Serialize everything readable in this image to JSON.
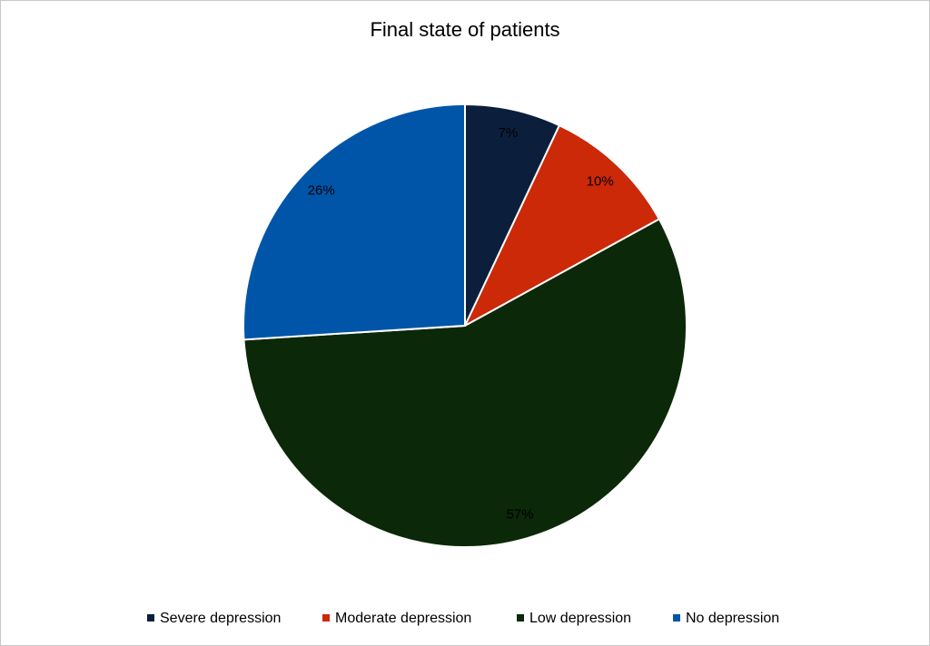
{
  "chart_data": {
    "type": "pie",
    "title": "Final state of patients",
    "categories": [
      "Severe depression",
      "Moderate depression",
      "Low depression",
      "No depression"
    ],
    "values": [
      7,
      10,
      57,
      26
    ],
    "value_labels": [
      "7%",
      "10%",
      "57%",
      "26%"
    ],
    "colors": [
      "#0b1f3d",
      "#cc2908",
      "#0b2808",
      "#0055a9"
    ],
    "legend": "bottom"
  }
}
